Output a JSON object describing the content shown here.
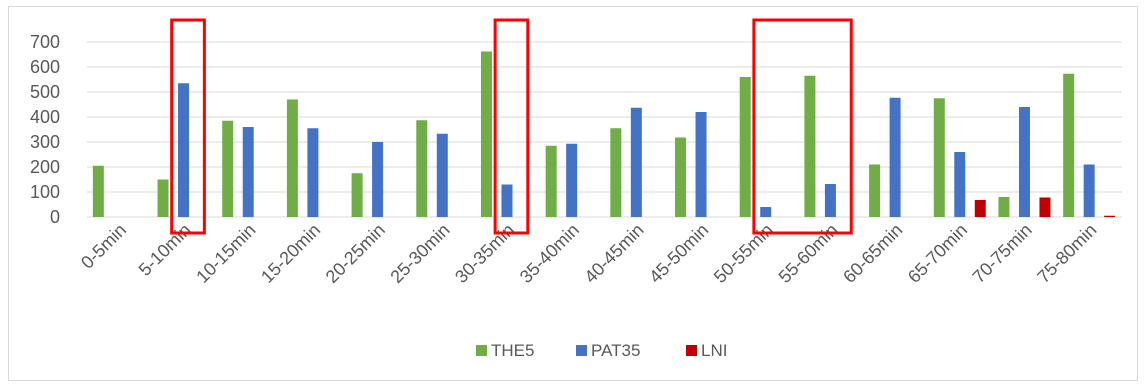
{
  "chart_data": {
    "type": "bar",
    "categories": [
      "0-5min",
      "5-10min",
      "10-15min",
      "15-20min",
      "20-25min",
      "25-30min",
      "30-35min",
      "35-40min",
      "40-45min",
      "45-50min",
      "50-55min",
      "55-60min",
      "60-65min",
      "65-70min",
      "70-75min",
      "75-80min"
    ],
    "series": [
      {
        "name": "THE5",
        "color": "#70ad47",
        "values": [
          205,
          150,
          385,
          470,
          175,
          387,
          662,
          285,
          355,
          318,
          560,
          565,
          210,
          475,
          80,
          573
        ]
      },
      {
        "name": "PAT35",
        "color": "#4472c4",
        "values": [
          0,
          535,
          360,
          355,
          300,
          333,
          130,
          293,
          437,
          420,
          40,
          132,
          477,
          260,
          440,
          210
        ]
      },
      {
        "name": "LNI",
        "color": "#c00000",
        "values": [
          0,
          0,
          0,
          0,
          0,
          0,
          0,
          0,
          0,
          0,
          0,
          0,
          0,
          68,
          78,
          5
        ]
      }
    ],
    "yticks": [
      "0",
      "100",
      "200",
      "300",
      "400",
      "500",
      "600",
      "700"
    ],
    "ylim": [
      0,
      700
    ],
    "grid": true,
    "legend": "bottom",
    "highlight_boxes": [
      {
        "from": "5-10min",
        "to": "5-10min",
        "color": "#ff0000"
      },
      {
        "from": "30-35min",
        "to": "30-35min",
        "color": "#ff0000"
      },
      {
        "from": "50-55min",
        "to": "55-60min",
        "color": "#ff0000"
      }
    ]
  }
}
